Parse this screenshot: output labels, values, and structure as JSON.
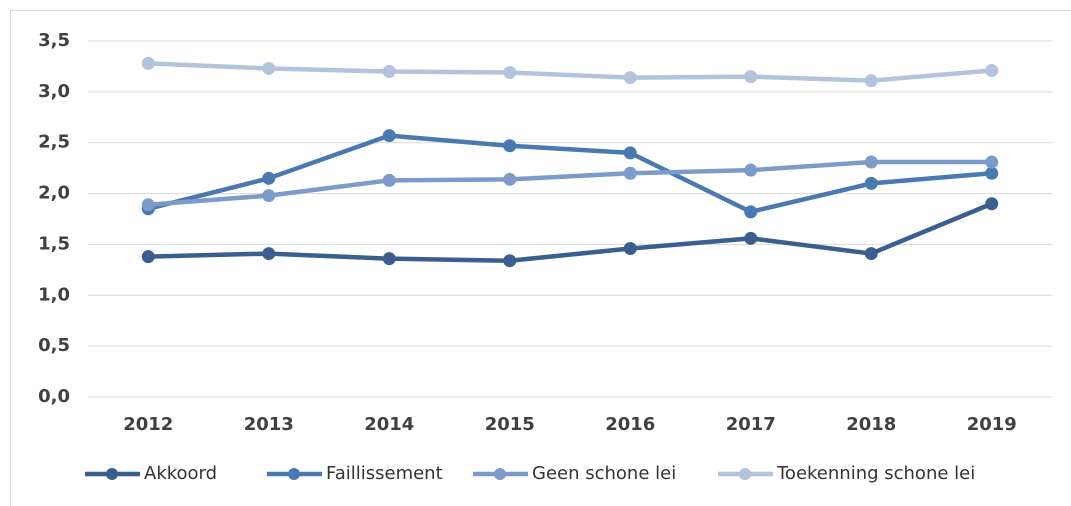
{
  "chart_data": {
    "type": "line",
    "categories": [
      "2012",
      "2013",
      "2014",
      "2015",
      "2016",
      "2017",
      "2018",
      "2019"
    ],
    "series": [
      {
        "name": "Akkoord",
        "color": "#3a5f8f",
        "values": [
          1.38,
          1.41,
          1.36,
          1.34,
          1.46,
          1.56,
          1.41,
          1.9
        ]
      },
      {
        "name": "Faillissement",
        "color": "#4a78b0",
        "values": [
          1.85,
          2.15,
          2.57,
          2.47,
          2.4,
          1.82,
          2.1,
          2.2
        ]
      },
      {
        "name": "Geen schone lei",
        "color": "#7d9bc9",
        "values": [
          1.89,
          1.98,
          2.13,
          2.14,
          2.2,
          2.23,
          2.31,
          2.31
        ]
      },
      {
        "name": "Toekenning schone lei",
        "color": "#b3c3de",
        "values": [
          3.28,
          3.23,
          3.2,
          3.19,
          3.14,
          3.15,
          3.11,
          3.21
        ]
      }
    ],
    "ylim": [
      0,
      3.5
    ],
    "yticks": [
      {
        "value": 0,
        "label": "0,0"
      },
      {
        "value": 0.5,
        "label": "0,5"
      },
      {
        "value": 1,
        "label": "1,0"
      },
      {
        "value": 1.5,
        "label": "1,5"
      },
      {
        "value": 2,
        "label": "2,0"
      },
      {
        "value": 2.5,
        "label": "2,5"
      },
      {
        "value": 3,
        "label": "3,0"
      },
      {
        "value": 3.5,
        "label": "3,5"
      }
    ],
    "grid": true,
    "legend": "bottom"
  }
}
